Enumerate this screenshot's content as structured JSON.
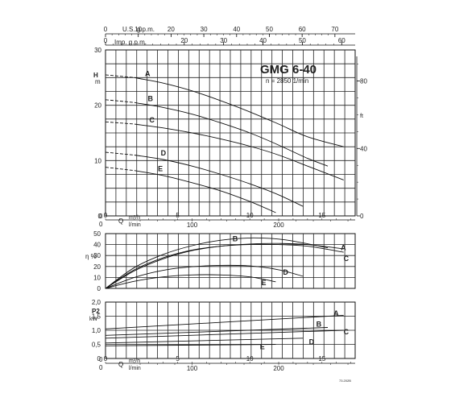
{
  "chart_data": [
    {
      "type": "line",
      "panel": "head",
      "title": "GMG 6-40",
      "subtitle": "n = 2850 1/min",
      "ylabel_top": "H",
      "ylabel_unit": "m",
      "ylim": [
        0,
        30
      ],
      "yticks": [
        0,
        10,
        20,
        30
      ],
      "right_axis_label": "ft",
      "right_ticks": [
        0,
        40,
        80
      ],
      "top_axis_usgpm_label": "U.S. g.p.m.",
      "top_axis_usgpm_ticks": [
        0,
        10,
        20,
        30,
        40,
        50,
        60,
        70
      ],
      "top_axis_impgpm_label": "Imp. g.p.m.",
      "top_axis_impgpm_ticks": [
        0,
        20,
        30,
        40,
        50,
        60
      ],
      "xlabel": "Q m³/h l/min",
      "xlim": [
        0,
        17.3
      ],
      "xticks_m3h": [
        0,
        5,
        10,
        15
      ],
      "xticks_lmin": [
        100,
        200
      ],
      "series": [
        {
          "name": "A",
          "x": [
            0,
            2,
            4,
            6,
            8,
            10,
            12,
            14,
            16.5
          ],
          "y": [
            25.5,
            25,
            24,
            22.6,
            20.8,
            18.8,
            16.6,
            14.3,
            12.5
          ]
        },
        {
          "name": "B",
          "x": [
            0,
            2,
            4,
            6,
            8,
            10,
            12,
            14,
            15.4
          ],
          "y": [
            21,
            20.5,
            19.6,
            18.4,
            16.8,
            15,
            12.8,
            10.4,
            9
          ]
        },
        {
          "name": "C",
          "x": [
            0,
            2,
            4,
            6,
            8,
            10,
            12,
            14,
            16.5
          ],
          "y": [
            17,
            16.6,
            15.9,
            15,
            13.9,
            12.6,
            11,
            9,
            6.5
          ]
        },
        {
          "name": "D",
          "x": [
            0,
            2,
            4,
            6,
            8,
            10,
            12,
            13.7
          ],
          "y": [
            11.5,
            11,
            10.2,
            9,
            7.5,
            5.8,
            3.8,
            1.7
          ]
        },
        {
          "name": "E",
          "x": [
            0,
            2,
            4,
            6,
            8,
            10,
            11.8
          ],
          "y": [
            8.8,
            8.2,
            7.3,
            6,
            4.5,
            2.6,
            0.6
          ]
        }
      ]
    },
    {
      "type": "line",
      "panel": "efficiency",
      "ylabel": "η %",
      "ylim": [
        0,
        50
      ],
      "yticks": [
        0,
        10,
        20,
        30,
        40,
        50
      ],
      "series": [
        {
          "name": "A",
          "x": [
            0,
            2,
            4,
            6,
            8,
            10,
            12,
            14,
            16.5
          ],
          "y": [
            0,
            16,
            27,
            34.5,
            38.5,
            40.5,
            41,
            40,
            36
          ]
        },
        {
          "name": "B",
          "x": [
            0,
            2,
            4,
            6,
            8,
            10,
            12,
            13.5,
            15.4
          ],
          "y": [
            0,
            19,
            31,
            39,
            44,
            46,
            45,
            42,
            37
          ]
        },
        {
          "name": "C",
          "x": [
            0,
            2,
            4,
            6,
            8,
            10,
            12,
            14,
            16.5
          ],
          "y": [
            0,
            17,
            28,
            35,
            38.5,
            40,
            40,
            38.5,
            33
          ]
        },
        {
          "name": "D",
          "x": [
            0,
            2,
            4,
            6,
            8,
            10,
            12,
            13.7
          ],
          "y": [
            0,
            10,
            16.5,
            19.8,
            21,
            20.5,
            17,
            11
          ]
        },
        {
          "name": "E",
          "x": [
            0,
            2,
            4,
            6,
            8,
            10,
            11.8
          ],
          "y": [
            0,
            6.5,
            10.5,
            12.3,
            12.3,
            10.5,
            6
          ]
        }
      ]
    },
    {
      "type": "line",
      "panel": "power",
      "ylabel": "P2",
      "yunit": "kW",
      "ylim": [
        0,
        2.0
      ],
      "yticks": [
        "0",
        "0,5",
        "1,0",
        "1,5",
        "2,0"
      ],
      "ytick_values": [
        0,
        0.5,
        1.0,
        1.5,
        2.0
      ],
      "xlabel": "Q m³/h l/min",
      "xticks_m3h": [
        0,
        5,
        10,
        15
      ],
      "xticks_lmin": [
        100,
        200
      ],
      "series": [
        {
          "name": "A",
          "x": [
            0,
            16.5
          ],
          "y": [
            1.05,
            1.53
          ]
        },
        {
          "name": "B",
          "x": [
            0,
            15.4
          ],
          "y": [
            0.82,
            1.1
          ]
        },
        {
          "name": "C",
          "x": [
            0,
            16.5
          ],
          "y": [
            0.72,
            1.0
          ]
        },
        {
          "name": "D",
          "x": [
            0,
            13.7
          ],
          "y": [
            0.55,
            0.72
          ]
        },
        {
          "name": "E",
          "x": [
            0,
            11.8
          ],
          "y": [
            0.45,
            0.5
          ]
        }
      ]
    }
  ],
  "footer_code": "73.202B"
}
